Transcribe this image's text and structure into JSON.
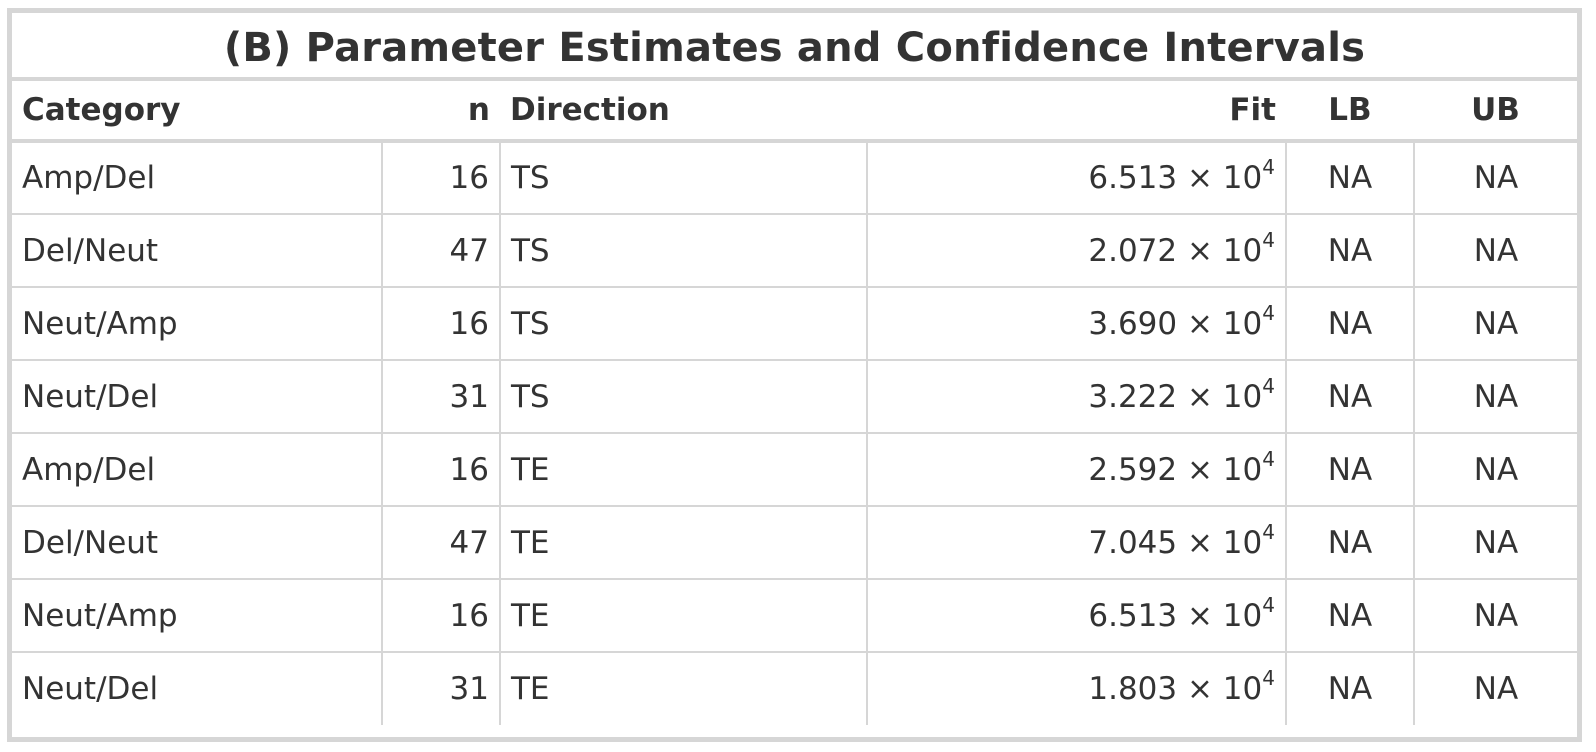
{
  "title": "(B) Parameter Estimates and Confidence Intervals",
  "columns": [
    "Category",
    "n",
    "Direction",
    "Fit",
    "LB",
    "UB"
  ],
  "rows": [
    {
      "category": "Amp/Del",
      "n": "16",
      "direction": "TS",
      "fit_mantissa": "6.513",
      "fit_exponent": "4",
      "lb": "NA",
      "ub": "NA"
    },
    {
      "category": "Del/Neut",
      "n": "47",
      "direction": "TS",
      "fit_mantissa": "2.072",
      "fit_exponent": "4",
      "lb": "NA",
      "ub": "NA"
    },
    {
      "category": "Neut/Amp",
      "n": "16",
      "direction": "TS",
      "fit_mantissa": "3.690",
      "fit_exponent": "4",
      "lb": "NA",
      "ub": "NA"
    },
    {
      "category": "Neut/Del",
      "n": "31",
      "direction": "TS",
      "fit_mantissa": "3.222",
      "fit_exponent": "4",
      "lb": "NA",
      "ub": "NA"
    },
    {
      "category": "Amp/Del",
      "n": "16",
      "direction": "TE",
      "fit_mantissa": "2.592",
      "fit_exponent": "4",
      "lb": "NA",
      "ub": "NA"
    },
    {
      "category": "Del/Neut",
      "n": "47",
      "direction": "TE",
      "fit_mantissa": "7.045",
      "fit_exponent": "4",
      "lb": "NA",
      "ub": "NA"
    },
    {
      "category": "Neut/Amp",
      "n": "16",
      "direction": "TE",
      "fit_mantissa": "6.513",
      "fit_exponent": "4",
      "lb": "NA",
      "ub": "NA"
    },
    {
      "category": "Neut/Del",
      "n": "31",
      "direction": "TE",
      "fit_mantissa": "1.803",
      "fit_exponent": "4",
      "lb": "NA",
      "ub": "NA"
    }
  ]
}
